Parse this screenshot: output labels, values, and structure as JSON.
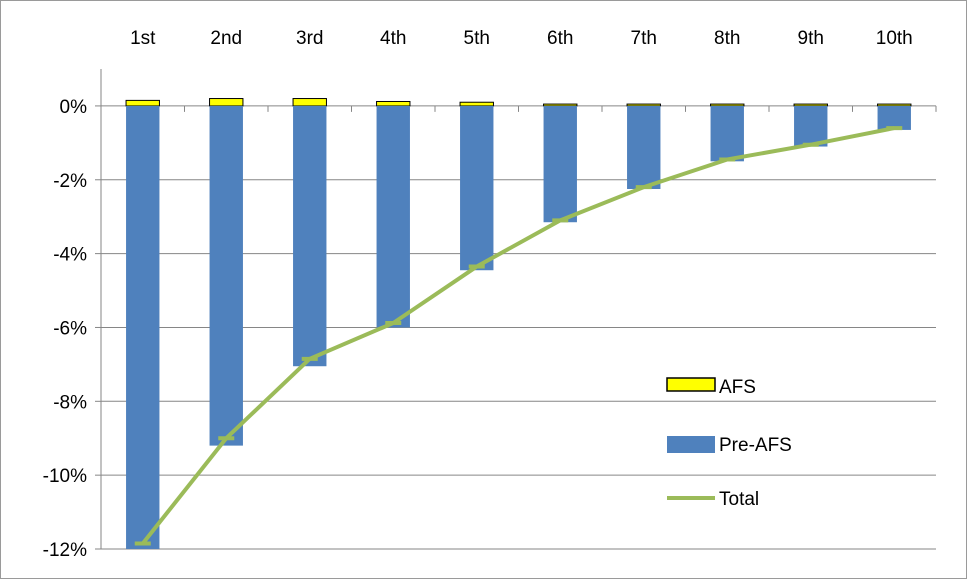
{
  "chart_data": {
    "type": "bar",
    "title": "",
    "xlabel": "",
    "ylabel": "",
    "categories": [
      "1st",
      "2nd",
      "3rd",
      "4th",
      "5th",
      "6th",
      "7th",
      "8th",
      "9th",
      "10th"
    ],
    "series": [
      {
        "name": "AFS",
        "kind": "bar",
        "color": "#ffff00",
        "stroke": "#000000",
        "values": [
          0.15,
          0.2,
          0.2,
          0.12,
          0.1,
          0.05,
          0.05,
          0.05,
          0.05,
          0.05
        ]
      },
      {
        "name": "Pre-AFS",
        "kind": "bar",
        "color": "#4f81bd",
        "values": [
          -12.0,
          -9.2,
          -7.05,
          -6.0,
          -4.45,
          -3.15,
          -2.25,
          -1.5,
          -1.1,
          -0.65
        ]
      },
      {
        "name": "Total",
        "kind": "line",
        "color": "#9bbb59",
        "values": [
          -11.85,
          -9.0,
          -6.85,
          -5.88,
          -4.35,
          -3.1,
          -2.2,
          -1.45,
          -1.05,
          -0.6
        ]
      }
    ],
    "ylim": [
      -12,
      1
    ],
    "yticks": [
      0,
      -2,
      -4,
      -6,
      -8,
      -10,
      -12
    ],
    "ytick_labels": [
      "0%",
      "-2%",
      "-4%",
      "-6%",
      "-8%",
      "-10%",
      "-12%"
    ],
    "grid": true,
    "legend_position": "lower-right",
    "x_axis_labels_position": "top"
  }
}
